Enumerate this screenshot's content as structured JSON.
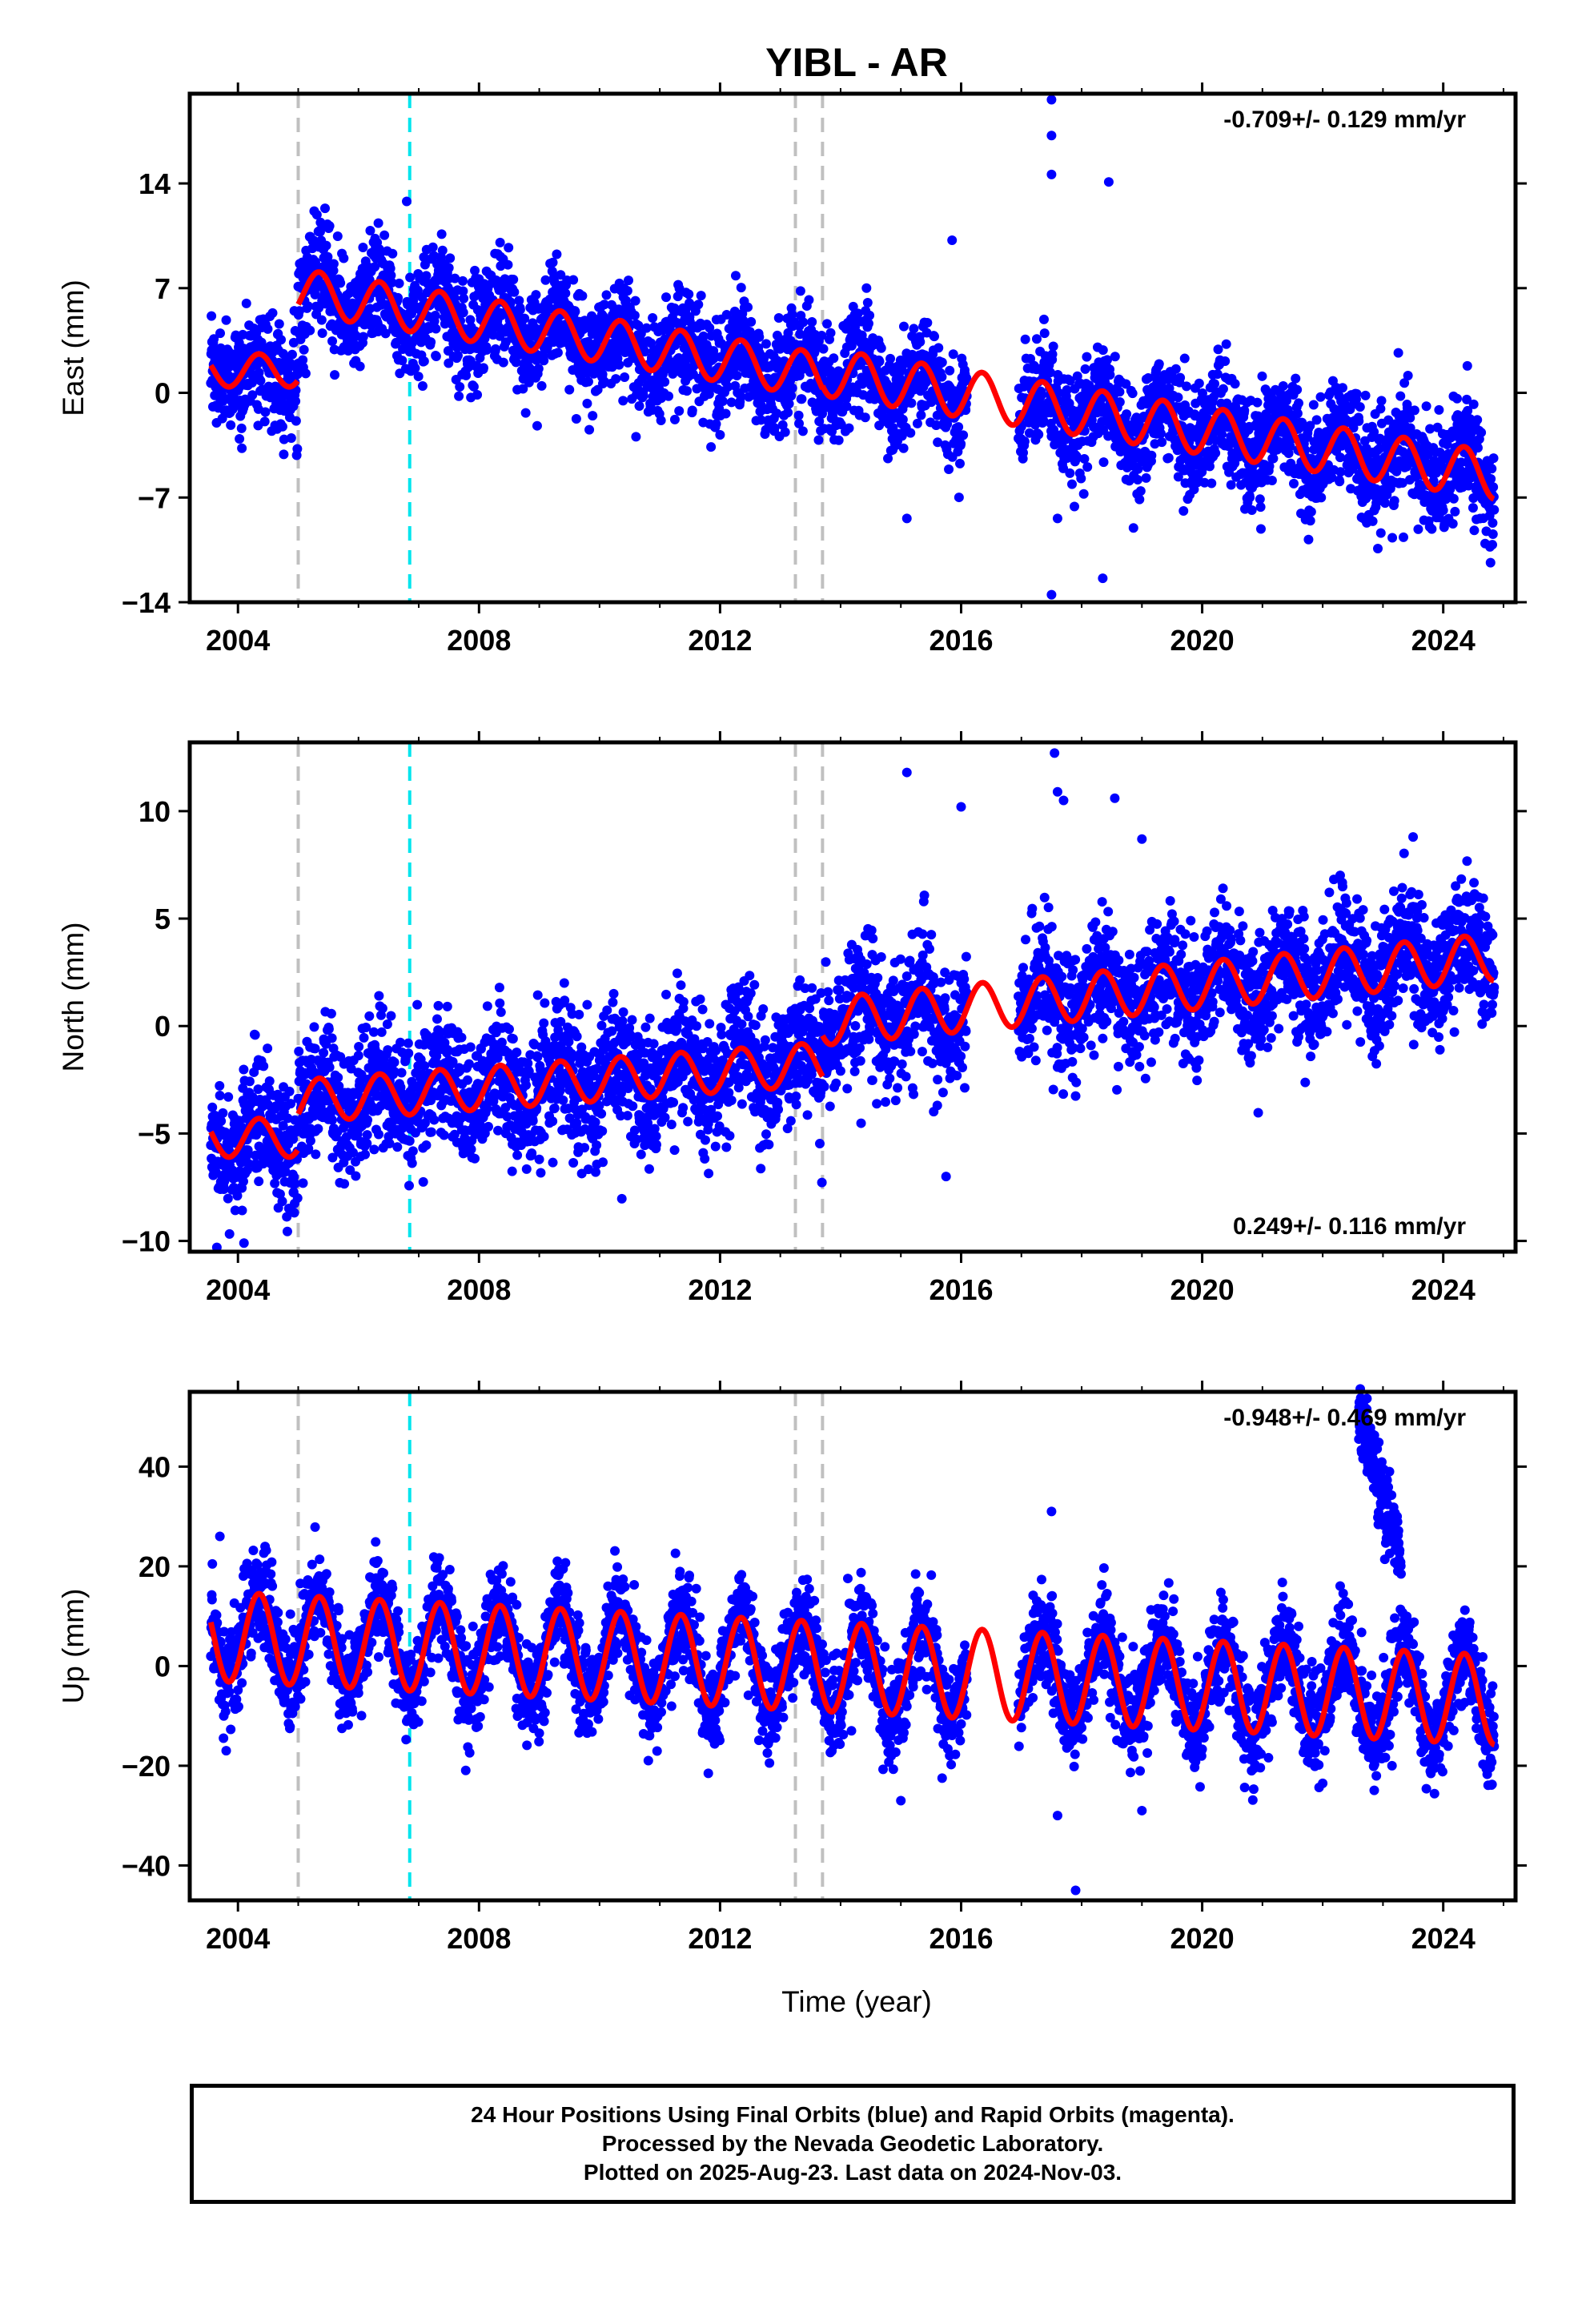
{
  "title": "YIBL - AR",
  "xlabel": "Time (year)",
  "colors": {
    "points": "#0000ff",
    "fit": "#ff0000",
    "event_gray": "#c0c0c0",
    "event_cyan": "#00e5ee"
  },
  "footer": {
    "line1": "24 Hour Positions Using Final Orbits (blue) and Rapid Orbits (magenta).",
    "line2": "Processed by the Nevada Geodetic Laboratory.",
    "line3": "Plotted on 2025-Aug-23. Last data on 2024-Nov-03."
  },
  "chart_data": [
    {
      "type": "scatter",
      "component": "east",
      "ylabel": "East (mm)",
      "rate_label": "-0.709+/- 0.129 mm/yr",
      "rate_position": "top-right",
      "xlim": [
        2003.2,
        2025.2
      ],
      "ylim": [
        -14,
        20
      ],
      "x_ticks": [
        "2004",
        "2008",
        "2012",
        "2016",
        "2020",
        "2024"
      ],
      "y_ticks": [
        "14",
        "7",
        "0",
        "−7",
        "−14"
      ],
      "y_tick_values": [
        14,
        7,
        0,
        -7,
        -14
      ],
      "event_lines": [
        {
          "x": 2005.0,
          "color": "gray"
        },
        {
          "x": 2006.85,
          "color": "cyan"
        },
        {
          "x": 2013.25,
          "color": "gray"
        },
        {
          "x": 2013.7,
          "color": "gray"
        }
      ],
      "fit": {
        "segments": [
          {
            "start": 2003.55,
            "end": 2005.0,
            "intercept": 1.5,
            "rate": 0,
            "annual_amp": 1.1
          },
          {
            "start": 2005.0,
            "end": 2013.7,
            "intercept": 6.8,
            "rate": -0.65,
            "annual_amp": 1.5
          },
          {
            "start": 2013.7,
            "end": 2024.85,
            "intercept": 1.4,
            "rate": -0.62,
            "annual_amp": 1.6
          }
        ]
      },
      "scatter_spread": 1.8,
      "gaps": [
        [
          2016.1,
          2016.95
        ]
      ],
      "outliers": [
        {
          "x": 2017.5,
          "y": 19.6
        },
        {
          "x": 2017.5,
          "y": 17.2
        },
        {
          "x": 2017.5,
          "y": 14.6
        },
        {
          "x": 2018.45,
          "y": 14.1
        },
        {
          "x": 2017.5,
          "y": -13.5
        },
        {
          "x": 2018.35,
          "y": -12.4
        },
        {
          "x": 2006.8,
          "y": 12.8
        },
        {
          "x": 2015.85,
          "y": 10.2
        },
        {
          "x": 2015.1,
          "y": -8.4
        },
        {
          "x": 2017.6,
          "y": -8.4
        }
      ]
    },
    {
      "type": "scatter",
      "component": "north",
      "ylabel": "North (mm)",
      "rate_label": "0.249+/- 0.116 mm/yr",
      "rate_position": "bottom-right",
      "xlim": [
        2003.2,
        2025.2
      ],
      "ylim": [
        -10.5,
        13.2
      ],
      "x_ticks": [
        "2004",
        "2008",
        "2012",
        "2016",
        "2020",
        "2024"
      ],
      "y_ticks": [
        "10",
        "5",
        "0",
        "−5",
        "−10"
      ],
      "y_tick_values": [
        10,
        5,
        0,
        -5,
        -10
      ],
      "event_lines": [
        {
          "x": 2005.0,
          "color": "gray"
        },
        {
          "x": 2006.85,
          "color": "cyan"
        },
        {
          "x": 2013.25,
          "color": "gray"
        },
        {
          "x": 2013.7,
          "color": "gray"
        }
      ],
      "fit": {
        "segments": [
          {
            "start": 2003.55,
            "end": 2005.0,
            "intercept": -5.2,
            "rate": 0,
            "annual_amp": 0.9
          },
          {
            "start": 2005.0,
            "end": 2013.7,
            "intercept": -3.5,
            "rate": 0.2,
            "annual_amp": 1.0
          },
          {
            "start": 2013.7,
            "end": 2024.85,
            "intercept": 0.2,
            "rate": 0.27,
            "annual_amp": 1.1
          }
        ]
      },
      "scatter_spread": 1.5,
      "gaps": [
        [
          2016.1,
          2016.95
        ]
      ],
      "outliers": [
        {
          "x": 2017.55,
          "y": 12.7
        },
        {
          "x": 2015.1,
          "y": 11.8
        },
        {
          "x": 2017.6,
          "y": 10.9
        },
        {
          "x": 2017.7,
          "y": 10.5
        },
        {
          "x": 2018.55,
          "y": 10.6
        },
        {
          "x": 2016.0,
          "y": 10.2
        },
        {
          "x": 2023.5,
          "y": 8.8
        },
        {
          "x": 2019.0,
          "y": 8.7
        },
        {
          "x": 2004.1,
          "y": -10.1
        },
        {
          "x": 2003.65,
          "y": -10.3
        },
        {
          "x": 2015.75,
          "y": -7.0
        }
      ]
    },
    {
      "type": "scatter",
      "component": "up",
      "ylabel": "Up (mm)",
      "rate_label": "-0.948+/- 0.469 mm/yr",
      "rate_position": "top-right",
      "xlim": [
        2003.2,
        2025.2
      ],
      "ylim": [
        -47,
        55
      ],
      "x_ticks": [
        "2004",
        "2008",
        "2012",
        "2016",
        "2020",
        "2024"
      ],
      "y_ticks": [
        "40",
        "20",
        "0",
        "−20",
        "−40"
      ],
      "y_tick_values": [
        40,
        20,
        0,
        -20,
        -40
      ],
      "event_lines": [
        {
          "x": 2005.0,
          "color": "gray"
        },
        {
          "x": 2006.85,
          "color": "cyan"
        },
        {
          "x": 2013.25,
          "color": "gray"
        },
        {
          "x": 2013.7,
          "color": "gray"
        }
      ],
      "fit": {
        "segments": [
          {
            "start": 2003.55,
            "end": 2024.85,
            "intercept": 6.0,
            "rate": -0.6,
            "annual_amp": 9.0
          }
        ]
      },
      "scatter_spread": 5.0,
      "gaps": [
        [
          2016.1,
          2016.95
        ]
      ],
      "anomaly": {
        "start": 2022.6,
        "end": 2023.3,
        "from": 50,
        "to": 22
      },
      "outliers": [
        {
          "x": 2017.9,
          "y": -45.0
        },
        {
          "x": 2015.0,
          "y": -27.0
        },
        {
          "x": 2017.6,
          "y": -30.0
        },
        {
          "x": 2019.0,
          "y": -29.0
        },
        {
          "x": 2017.5,
          "y": 31.0
        },
        {
          "x": 2003.7,
          "y": 26.0
        },
        {
          "x": 2023.1,
          "y": -16.0
        },
        {
          "x": 2023.15,
          "y": -20.0
        }
      ]
    }
  ]
}
